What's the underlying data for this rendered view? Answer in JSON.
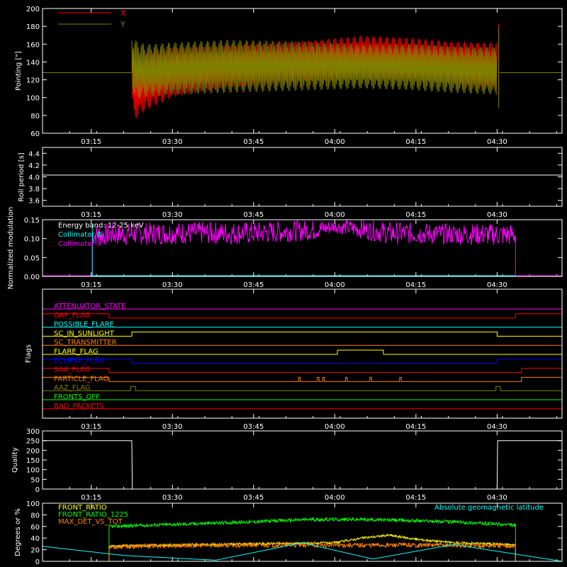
{
  "time_axis": {
    "labels": [
      "03:15",
      "03:30",
      "03:45",
      "04:00",
      "04:15",
      "04:30"
    ],
    "minutes": [
      195,
      210,
      225,
      240,
      255,
      270
    ],
    "start_min": 186,
    "end_min": 282
  },
  "chart_data": [
    {
      "type": "line",
      "ylabel": "Pointing [\"]",
      "ylim": [
        60,
        200
      ],
      "yticks": [
        60,
        80,
        100,
        120,
        140,
        160,
        180,
        200
      ],
      "legend": "top-left",
      "series": [
        {
          "name": "X",
          "color": "#ff0000",
          "x": [
            186,
            202.5,
            203,
            205,
            210,
            220,
            235,
            245,
            255,
            262,
            270,
            270.5,
            282
          ],
          "upper": [
            128,
            163,
            140,
            150,
            155,
            158,
            164,
            170,
            167,
            163,
            162,
            183,
            128
          ],
          "lower": [
            128,
            95,
            75,
            85,
            100,
            112,
            118,
            120,
            120,
            115,
            110,
            100,
            128
          ]
        },
        {
          "name": "Y",
          "color": "#808000",
          "x": [
            186,
            202.5,
            203,
            205,
            210,
            220,
            235,
            245,
            255,
            262,
            270,
            270.5,
            282
          ],
          "upper": [
            128,
            170,
            165,
            160,
            162,
            165,
            163,
            160,
            160,
            158,
            157,
            178,
            128
          ],
          "lower": [
            128,
            115,
            98,
            100,
            103,
            105,
            108,
            110,
            108,
            105,
            103,
            88,
            128
          ]
        }
      ]
    },
    {
      "type": "line",
      "ylabel": "Roll period [s]",
      "ylim": [
        3.5,
        4.5
      ],
      "yticks": [
        3.6,
        3.8,
        4.0,
        4.2,
        4.4
      ],
      "tick_labels": [
        "3.6",
        "3.8",
        "4.0",
        "4.2",
        "4.4"
      ],
      "series": [
        {
          "name": "",
          "color": "#ffffff",
          "value": 4.03
        }
      ]
    },
    {
      "type": "line",
      "ylabel": "Normalized modulation",
      "ylim": [
        0,
        0.15
      ],
      "yticks": [
        0,
        0.05,
        0.1,
        0.15
      ],
      "tick_labels": [
        "0.00",
        "0.05",
        "0.10",
        "0.15"
      ],
      "legend": "top-left",
      "annotation": "Energy band: 12-25 keV",
      "series": [
        {
          "name": "Collimator 8",
          "color": "#00ffff",
          "value": 0.0
        },
        {
          "name": "Collimator 9",
          "color": "#ff00ff",
          "x_start": 195.2,
          "x_end": 273.4,
          "x": [
            195.2,
            210,
            225,
            236,
            240,
            245,
            250,
            260,
            273.4
          ],
          "upper": [
            0.14,
            0.145,
            0.145,
            0.15,
            0.15,
            0.15,
            0.145,
            0.14,
            0.14
          ],
          "lower": [
            0.08,
            0.085,
            0.085,
            0.095,
            0.115,
            0.1,
            0.085,
            0.085,
            0.08
          ]
        }
      ]
    },
    {
      "type": "line",
      "ylabel": "Flags",
      "flags": [
        {
          "name": "ATTENUATOR_STATE",
          "color": "#ff00ff",
          "on": []
        },
        {
          "name": "GAP_FLAG",
          "color": "#ff0000",
          "on": [
            [
              186,
              198.3
            ],
            [
              273.4,
              282
            ]
          ]
        },
        {
          "name": "POSSIBLE_FLARE",
          "color": "#00ffff",
          "on": []
        },
        {
          "name": "SC_IN_SUNLIGHT",
          "color": "#ffff00",
          "on": [
            [
              202.5,
              270
            ]
          ]
        },
        {
          "name": "SC_TRANSMITTER",
          "color": "#ff8000",
          "on": []
        },
        {
          "name": "FLARE_FLAG",
          "color": "#ffff00",
          "on": [
            [
              240.5,
              249
            ]
          ]
        },
        {
          "name": "ECLIPSE_FLAG",
          "color": "#0000ff",
          "on": [
            [
              186,
              202.5
            ],
            [
              270,
              282
            ]
          ]
        },
        {
          "name": "SAA_FLAG",
          "color": "#ff0000",
          "on": [
            [
              186,
              198.3
            ],
            [
              274.5,
              282
            ]
          ]
        },
        {
          "name": "PARTICLE_FLAG",
          "color": "#ff8000",
          "on": [
            [
              186,
              198.3
            ],
            [
              233.3,
              233.6
            ],
            [
              236.8,
              237.1
            ],
            [
              237.8,
              238.1
            ],
            [
              242,
              242.3
            ],
            [
              246.5,
              246.8
            ],
            [
              252,
              252.3
            ],
            [
              274.5,
              282
            ]
          ]
        },
        {
          "name": "AAZ_FLAG",
          "color": "#808000",
          "on": [
            [
              202.3,
              203.2
            ],
            [
              269.8,
              270.6
            ]
          ]
        },
        {
          "name": "FRONTS_OFF",
          "color": "#00ff00",
          "on": []
        },
        {
          "name": "BAD_PACKETS",
          "color": "#ff0000",
          "on": []
        }
      ]
    },
    {
      "type": "line",
      "ylabel": "Quality",
      "ylim": [
        0,
        300
      ],
      "yticks": [
        0,
        50,
        100,
        150,
        200,
        250,
        300
      ],
      "series": [
        {
          "name": "",
          "color": "#ffffff",
          "x": [
            186,
            202.5,
            202.6,
            270,
            270.1,
            282
          ],
          "y": [
            250,
            250,
            0,
            0,
            250,
            250
          ]
        }
      ]
    },
    {
      "type": "line",
      "ylabel": "Degrees or %",
      "ylim": [
        0,
        100
      ],
      "yticks": [
        0,
        20,
        40,
        60,
        80,
        100
      ],
      "legend": "top-left",
      "series": [
        {
          "name": "FRONT_RATIO",
          "color": "#ffff00",
          "x_start": 198.3,
          "x_end": 273.4,
          "x": [
            198.3,
            210,
            225,
            240,
            245,
            250,
            255,
            262,
            270,
            273.4
          ],
          "y": [
            26,
            28,
            30,
            32,
            40,
            45,
            38,
            32,
            30,
            28
          ]
        },
        {
          "name": "FRONT_RATIO_1225",
          "color": "#00ff00",
          "x_start": 198.3,
          "x_end": 273.4,
          "x": [
            198.3,
            205,
            215,
            225,
            235,
            245,
            255,
            262,
            270,
            273.4
          ],
          "y": [
            60,
            62,
            65,
            68,
            72,
            72,
            70,
            68,
            64,
            62
          ]
        },
        {
          "name": "MAX_DET_VS_TOT",
          "color": "#ff8000",
          "x_start": 198.3,
          "x_end": 273.4,
          "x": [
            198.3,
            210,
            225,
            240,
            255,
            270,
            273.4
          ],
          "y": [
            25,
            27,
            28,
            28,
            28,
            27,
            26
          ]
        },
        {
          "name": "Absolute geomagnetic latitude",
          "color": "#00ffff",
          "x": [
            186,
            201,
            218,
            234,
            247,
            262,
            282
          ],
          "y": [
            26,
            10,
            2,
            32,
            4,
            29,
            0
          ]
        }
      ]
    }
  ]
}
